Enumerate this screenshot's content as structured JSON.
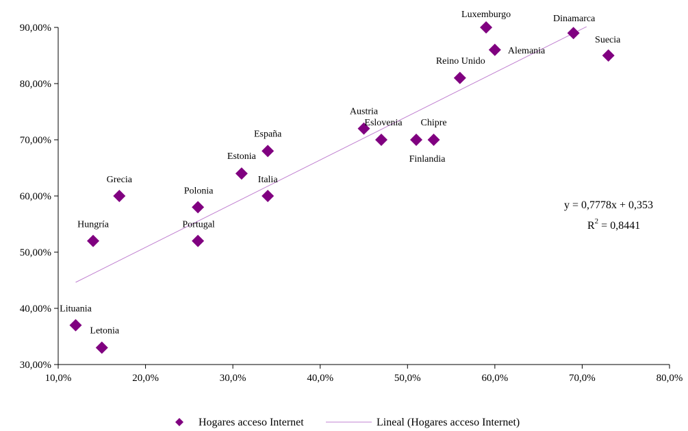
{
  "chart_data": {
    "type": "scatter",
    "title": "",
    "xlabel": "",
    "ylabel": "",
    "xlim": [
      10,
      80
    ],
    "ylim": [
      30,
      90
    ],
    "x_ticks": [
      10,
      20,
      30,
      40,
      50,
      60,
      70,
      80
    ],
    "x_tick_labels": [
      "10,0%",
      "20,0%",
      "30,0%",
      "40,0%",
      "50,0%",
      "60,0%",
      "70,0%",
      "80,0%"
    ],
    "y_ticks": [
      30,
      40,
      50,
      60,
      70,
      80,
      90
    ],
    "y_tick_labels": [
      "30,00%",
      "40,00%",
      "50,00%",
      "60,00%",
      "70,00%",
      "80,00%",
      "90,00%"
    ],
    "grid": false,
    "legend_position": "bottom",
    "series": [
      {
        "name": "Hogares acceso Internet",
        "color": "#800080",
        "marker": "diamond",
        "points": [
          {
            "label": "Lituania",
            "x": 12,
            "y": 37
          },
          {
            "label": "Letonia",
            "x": 15,
            "y": 33
          },
          {
            "label": "Hungría",
            "x": 14,
            "y": 52
          },
          {
            "label": "Grecia",
            "x": 17,
            "y": 60
          },
          {
            "label": "Polonia",
            "x": 26,
            "y": 58
          },
          {
            "label": "Portugal",
            "x": 26,
            "y": 52
          },
          {
            "label": "Estonia",
            "x": 31,
            "y": 64
          },
          {
            "label": "España",
            "x": 34,
            "y": 68
          },
          {
            "label": "Italia",
            "x": 34,
            "y": 60
          },
          {
            "label": "Austria",
            "x": 45,
            "y": 72
          },
          {
            "label": "Eslovenia",
            "x": 47,
            "y": 70
          },
          {
            "label": "Finlandia",
            "x": 51,
            "y": 70
          },
          {
            "label": "Chipre",
            "x": 53,
            "y": 70
          },
          {
            "label": "Reino Unido",
            "x": 56,
            "y": 81
          },
          {
            "label": "Luxemburgo",
            "x": 59,
            "y": 90
          },
          {
            "label": "Alemania",
            "x": 60,
            "y": 86
          },
          {
            "label": "Dinamarca",
            "x": 69,
            "y": 89
          },
          {
            "label": "Suecia",
            "x": 73,
            "y": 85
          }
        ]
      }
    ],
    "trendline": {
      "name": "Lineal (Hogares acceso Internet)",
      "color": "#c080d0",
      "x_range": [
        12,
        70.5
      ],
      "slope": 0.7778,
      "intercept": 35.3,
      "equation": "y = 0,7778x + 0,353",
      "r2_label": "R",
      "r2_sup": "2",
      "r2_value": " = 0,8441"
    }
  }
}
